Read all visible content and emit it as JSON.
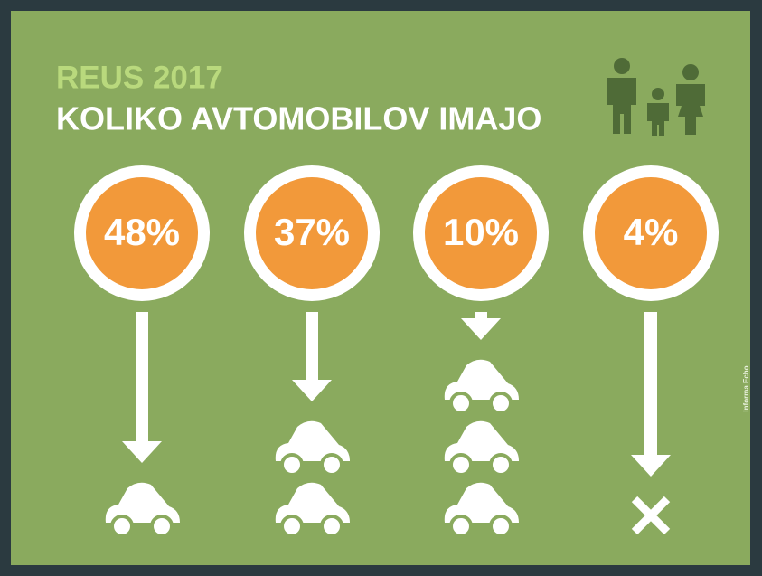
{
  "chart_data": {
    "type": "pictogram",
    "title": "REUS 2017",
    "subtitle": "KOLIKO AVTOMOBILOV IMAJO",
    "values": [
      48,
      37,
      10,
      4
    ],
    "value_labels": [
      "48%",
      "37%",
      "10%",
      "4%"
    ],
    "car_counts": [
      1,
      2,
      3,
      0
    ],
    "color": "#f2993a",
    "credit": "Informa Echo"
  }
}
